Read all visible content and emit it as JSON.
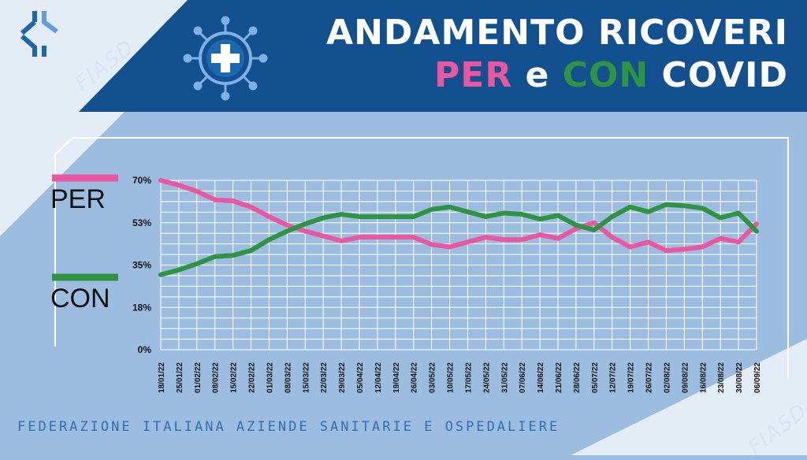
{
  "header": {
    "title_line1": "ANDAMENTO RICOVERI",
    "title_per": "PER",
    "title_e": " e ",
    "title_con": "CON",
    "title_covid": " COVID"
  },
  "brand": {
    "logo_text": "FIASD"
  },
  "footer": {
    "text": "FEDERAZIONE ITALIANA AZIENDE SANITARIE E OSPEDALIERE"
  },
  "colors": {
    "header_bg": "#13508f",
    "per": "#e8579f",
    "con": "#2e9444",
    "panel_bg": "#9dbde0",
    "grid": "#ffffff",
    "text_blue": "#2f6fb5"
  },
  "icons": {
    "logo": "cross-compass-icon",
    "covid": "virus-cross-icon"
  },
  "chart_data": {
    "type": "line",
    "title": "",
    "xlabel": "",
    "ylabel": "",
    "yticks": [
      "0%",
      "18%",
      "35%",
      "53%",
      "70%"
    ],
    "ylim": [
      0,
      70
    ],
    "grid": true,
    "legend_placement": "left",
    "categories": [
      "18/01/22",
      "25/01/22",
      "01/02/22",
      "08/02/22",
      "15/02/22",
      "22/02/22",
      "01/03/22",
      "08/03/22",
      "15/03/22",
      "22/03/22",
      "29/03/22",
      "05/04/22",
      "12/04/22",
      "19/04/22",
      "26/04/22",
      "03/05/22",
      "10/05/22",
      "17/05/22",
      "24/05/22",
      "31/05/22",
      "07/06/22",
      "14/06/22",
      "21/06/22",
      "28/06/22",
      "05/07/22",
      "12/07/22",
      "19/07/22",
      "26/07/22",
      "02/08/22",
      "09/08/22",
      "16/08/22",
      "23/08/22",
      "30/08/22",
      "06/09/22"
    ],
    "series": [
      {
        "name": "PER",
        "color": "#e8579f",
        "values": [
          70,
          68,
          65.5,
          62,
          61.5,
          59,
          55,
          51.5,
          49,
          47,
          45,
          46.5,
          46.5,
          46.5,
          46.5,
          43.5,
          42.5,
          44.5,
          46.5,
          45.5,
          45.5,
          47.5,
          46,
          50,
          52.5,
          46.5,
          42.5,
          44.5,
          41,
          41.5,
          42.5,
          46,
          44.5,
          52
        ]
      },
      {
        "name": "CON",
        "color": "#2e9444",
        "values": [
          31,
          33,
          35.5,
          38.5,
          39,
          41,
          45.5,
          49,
          52,
          54.5,
          56,
          55,
          55,
          55,
          55,
          58,
          59,
          57,
          55,
          56.5,
          56,
          54,
          55.5,
          51.5,
          49.5,
          55,
          59,
          57,
          60,
          59.5,
          58.5,
          54.5,
          56.5,
          49
        ]
      }
    ]
  }
}
